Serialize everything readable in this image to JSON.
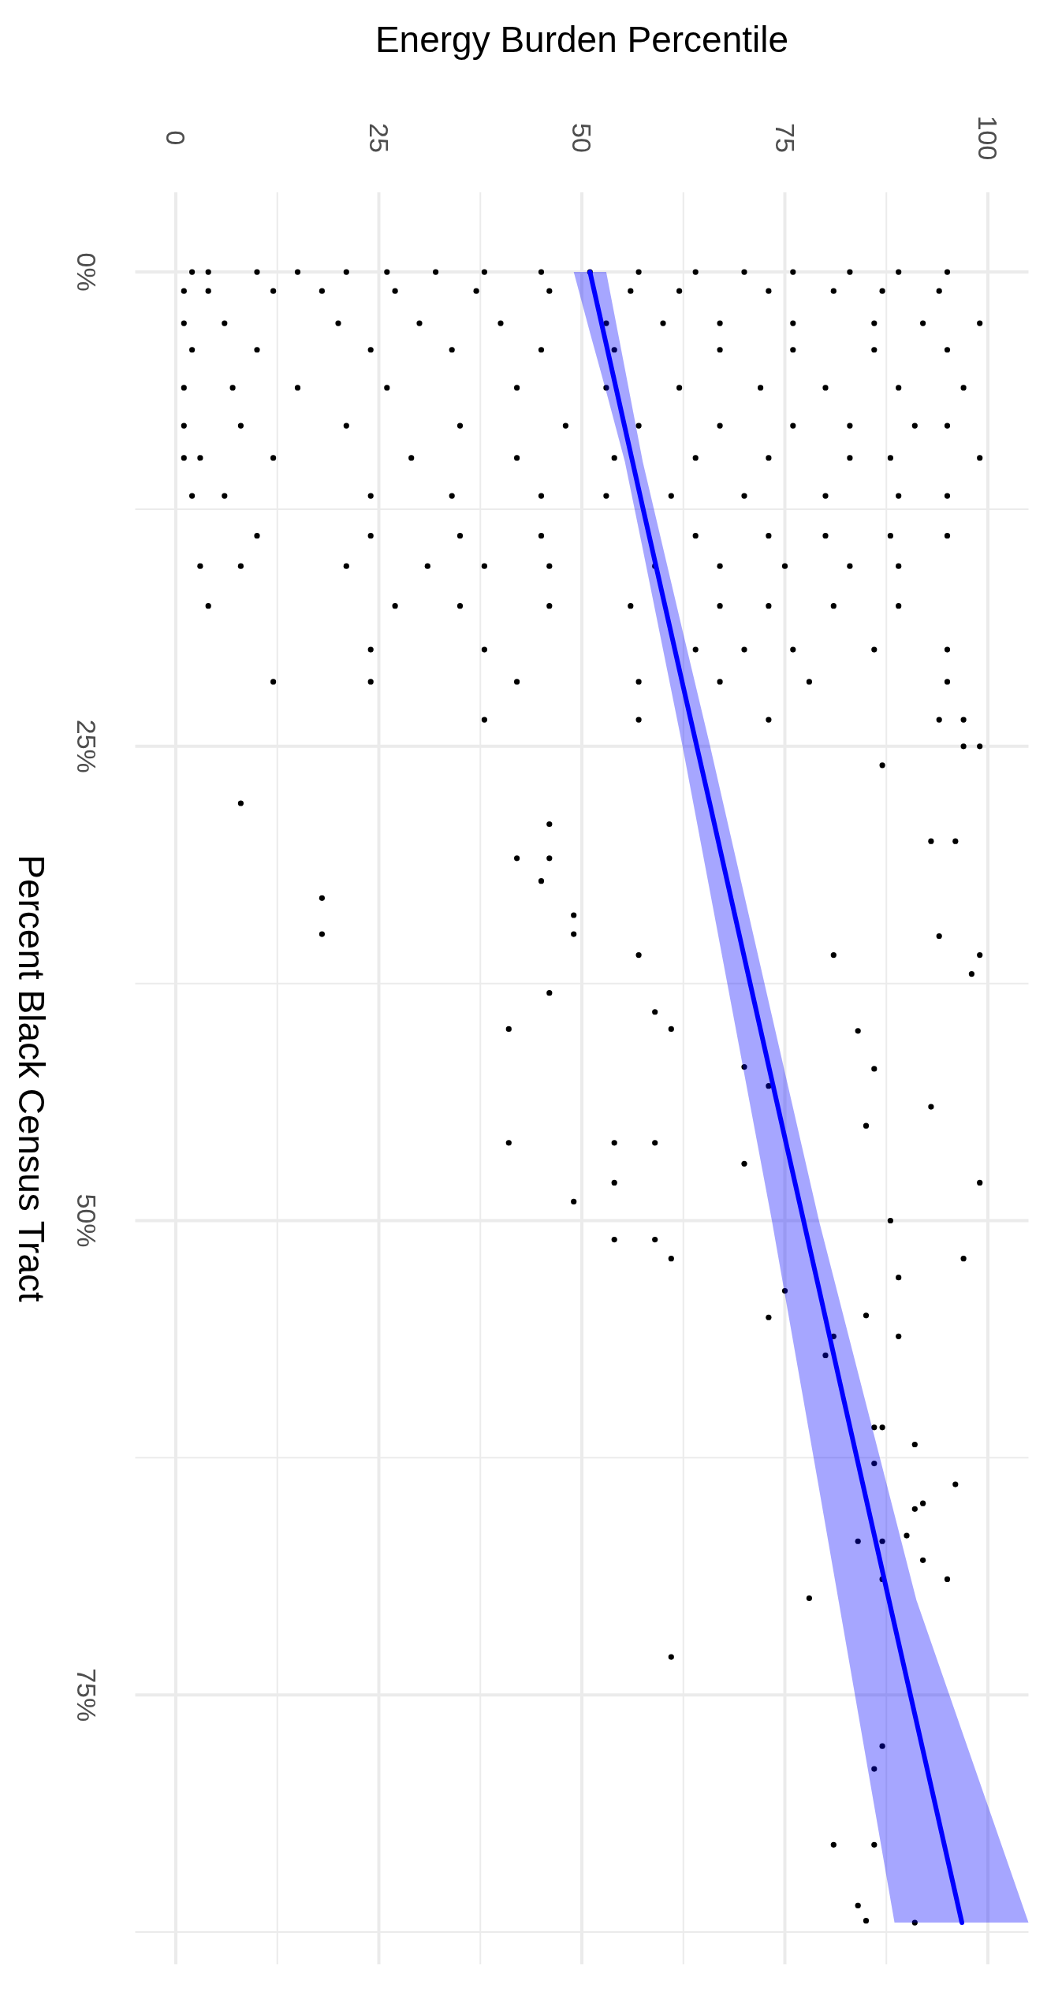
{
  "chart_data": {
    "type": "scatter",
    "xlabel": "Energy Burden Percentile",
    "ylabel": "Percent Black Census Tract",
    "xlim": [
      -5,
      105
    ],
    "ylim": [
      89.2,
      -4.2
    ],
    "xticks": [
      0,
      {
        "value": 12.5,
        "label": null
      },
      25,
      {
        "value": 37.5,
        "label": null
      },
      50,
      {
        "value": 62.5,
        "label": null
      },
      75,
      {
        "value": 87.5,
        "label": null
      },
      100
    ],
    "yticks": [
      {
        "value": 0,
        "label": "0%"
      },
      {
        "value": 12.5,
        "label": null
      },
      {
        "value": 25,
        "label": "25%"
      },
      {
        "value": 37.5,
        "label": null
      },
      {
        "value": 50,
        "label": "50%"
      },
      {
        "value": 62.5,
        "label": null
      },
      {
        "value": 75,
        "label": "75%"
      },
      {
        "value": 87.5,
        "label": null
      }
    ],
    "grid": true,
    "series": [
      {
        "marker": "circle",
        "color": "#000000",
        "values": [
          0,
          0,
          0,
          0,
          0,
          0,
          0,
          0,
          0,
          0,
          0,
          0,
          0,
          0,
          0,
          0,
          0,
          1,
          1,
          1,
          1,
          1,
          1,
          1,
          1,
          1,
          1,
          1,
          1,
          1,
          2.7,
          2.7,
          2.7,
          2.7,
          2.7,
          2.7,
          2.7,
          2.7,
          2.7,
          2.7,
          2.7,
          2.7,
          4.1,
          4.1,
          4.1,
          4.1,
          4.1,
          4.1,
          4.1,
          4.1,
          4.1,
          4.1,
          6.1,
          6.1,
          6.1,
          6.1,
          6.1,
          6.1,
          6.1,
          6.1,
          6.1,
          6.1,
          6.1,
          8.1,
          8.1,
          8.1,
          8.1,
          8.1,
          8.1,
          8.1,
          8.1,
          8.1,
          8.1,
          8.1,
          9.8,
          9.8,
          9.8,
          9.8,
          9.8,
          9.8,
          9.8,
          9.8,
          9.8,
          9.8,
          9.8,
          11.8,
          11.8,
          11.8,
          11.8,
          11.8,
          11.8,
          11.8,
          11.8,
          11.8,
          11.8,
          11.8,
          13.9,
          13.9,
          13.9,
          13.9,
          13.9,
          13.9,
          13.9,
          13.9,
          13.9,
          15.5,
          15.5,
          15.5,
          15.5,
          15.5,
          15.5,
          15.5,
          15.5,
          15.5,
          15.5,
          15.5,
          17.6,
          17.6,
          17.6,
          17.6,
          17.6,
          17.6,
          17.6,
          17.6,
          17.6,
          19.9,
          19.9,
          19.9,
          19.9,
          19.9,
          19.9,
          19.9,
          21.6,
          21.6,
          21.6,
          21.6,
          21.6,
          21.6,
          21.6,
          23.6,
          23.6,
          23.6,
          23.6,
          23.6,
          28,
          29.1,
          30.9,
          30.9,
          32.1,
          33,
          34.9,
          33.9,
          34.9,
          36,
          38,
          39.9,
          39,
          39.9,
          41.9,
          42.9,
          45.9,
          45.9,
          45.9,
          47,
          49,
          48,
          51,
          52,
          51,
          55.1,
          53.7,
          56.1,
          57.1,
          56.1,
          61.8,
          62.8,
          66.9,
          66.9,
          67.9,
          64.9,
          60.9,
          60.9,
          66.6,
          63.9,
          65.2,
          68.9,
          69.9,
          68.9,
          73,
          77.7,
          78.9,
          82.9,
          82.9,
          86.1,
          86.9,
          87,
          25,
          25,
          26,
          30,
          30,
          35,
          36,
          37,
          44,
          48,
          52,
          36,
          40,
          42,
          45,
          50,
          53,
          55
        ],
        "x": [
          2,
          4,
          10,
          15,
          21,
          26,
          32,
          38,
          45,
          51,
          57,
          64,
          70,
          76,
          83,
          89,
          95,
          1,
          4,
          12,
          18,
          27,
          37,
          46,
          56,
          62,
          73,
          81,
          87,
          94,
          1,
          6,
          20,
          30,
          40,
          53,
          60,
          67,
          76,
          86,
          92,
          99,
          2,
          10,
          24,
          34,
          45,
          54,
          67,
          76,
          86,
          95,
          1,
          7,
          15,
          26,
          42,
          53,
          62,
          72,
          80,
          89,
          97,
          1,
          8,
          21,
          35,
          48,
          57,
          67,
          76,
          83,
          91,
          95,
          1,
          3,
          12,
          29,
          42,
          54,
          64,
          73,
          83,
          88,
          99,
          2,
          6,
          24,
          34,
          45,
          53,
          61,
          70,
          80,
          89,
          95,
          10,
          24,
          35,
          45,
          64,
          73,
          80,
          88,
          95,
          3,
          8,
          21,
          31,
          38,
          46,
          59,
          67,
          75,
          83,
          89,
          4,
          27,
          35,
          46,
          56,
          67,
          73,
          81,
          89,
          24,
          38,
          64,
          70,
          76,
          86,
          95,
          12,
          24,
          42,
          57,
          67,
          78,
          95,
          38,
          57,
          73,
          94,
          97,
          8,
          46,
          42,
          46,
          45,
          18,
          18,
          49,
          49,
          57,
          46,
          41,
          59,
          61,
          70,
          73,
          41,
          54,
          59,
          70,
          49,
          54,
          54,
          61,
          59,
          73,
          75,
          81,
          80,
          89,
          91,
          86,
          87,
          84,
          92,
          92,
          86,
          87,
          90,
          96,
          91,
          87,
          78,
          95,
          61,
          87,
          86,
          81,
          86,
          84,
          85,
          91,
          97,
          99,
          87,
          93,
          96,
          94,
          99,
          98,
          93,
          99,
          97,
          81,
          84,
          86,
          85,
          88,
          89,
          85
        ]
      },
      {
        "type": "line",
        "marker": "none",
        "color": "#0000ff",
        "x": [
          49,
          51,
          53,
          55.3,
          57.5,
          62.4,
          65.8,
          73.4,
          79.2,
          81.6,
          88.5,
          91.2,
          96.8,
          105
        ],
        "values": [
          null,
          0,
          3.8,
          8.2,
          12.4,
          21.7,
          28.1,
          42.6,
          53.6,
          58.2,
          71.3,
          76.4,
          87,
          null
        ],
        "lower": [
          0,
          0,
          0,
          5.1,
          10,
          18.9,
          25,
          39.2,
          50,
          54,
          65.5,
          70,
          76.9,
          87
        ],
        "upper": [
          0,
          3.2,
          6.3,
          10,
          14.6,
          25,
          32.7,
          50,
          64.1,
          70,
          87,
          87,
          87,
          87
        ]
      }
    ]
  }
}
